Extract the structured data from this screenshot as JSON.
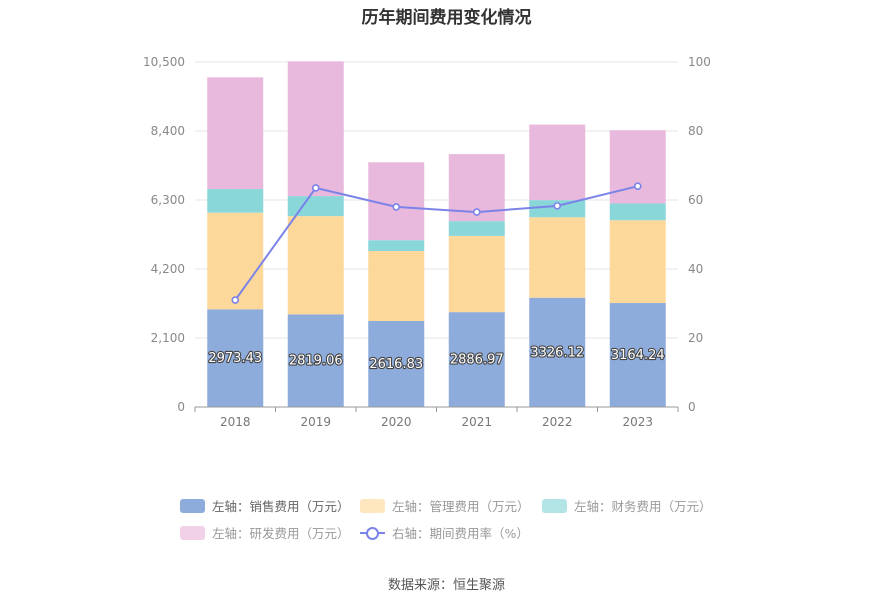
{
  "title": "历年期间费用变化情况",
  "source": "数据来源：恒生聚源",
  "colors": {
    "sales": "#8eacdb",
    "admin": "#fdd89b",
    "finance": "#8ad7da",
    "rnd": "#e8b9dc",
    "rate": "#7b83e8"
  },
  "legend": [
    {
      "label": "左轴：销售费用（万元）",
      "key": "sales",
      "kind": "box"
    },
    {
      "label": "左轴：管理费用（万元）",
      "key": "admin",
      "kind": "box"
    },
    {
      "label": "左轴：财务费用（万元）",
      "key": "finance",
      "kind": "box"
    },
    {
      "label": "左轴：研发费用（万元）",
      "key": "rnd",
      "kind": "box"
    },
    {
      "label": "右轴：期间费用率（%）",
      "key": "rate",
      "kind": "line"
    }
  ],
  "chart_data": {
    "type": "bar",
    "stacked": true,
    "categories": [
      "2018",
      "2019",
      "2020",
      "2021",
      "2022",
      "2023"
    ],
    "left_axis": {
      "ticks": [
        "0",
        "2,100",
        "4,200",
        "6,300",
        "8,400",
        "10,500"
      ],
      "ylim": [
        0,
        10500
      ]
    },
    "right_axis": {
      "ticks": [
        "0",
        "20",
        "40",
        "60",
        "80",
        "100"
      ],
      "ylim": [
        0,
        100
      ]
    },
    "series": [
      {
        "name": "左轴：销售费用（万元）",
        "key": "sales",
        "values": [
          2973.43,
          2819.06,
          2616.83,
          2886.97,
          3326.12,
          3164.24
        ],
        "labels": [
          "2973.43",
          "2819.06",
          "2616.83",
          "2886.97",
          "3326.12",
          "3164.24"
        ]
      },
      {
        "name": "左轴：管理费用（万元）",
        "key": "admin",
        "values": [
          2940,
          2990,
          2130,
          2320,
          2450,
          2520
        ]
      },
      {
        "name": "左轴：财务费用（万元）",
        "key": "finance",
        "values": [
          720,
          610,
          330,
          450,
          520,
          510
        ]
      },
      {
        "name": "左轴：研发费用（万元）",
        "key": "rnd",
        "values": [
          3400,
          4100,
          2370,
          2040,
          2300,
          2230
        ]
      },
      {
        "name": "右轴：期间费用率（%）",
        "key": "rate",
        "axis": "right",
        "type": "line",
        "values": [
          31.0,
          63.5,
          58.0,
          56.5,
          58.3,
          64.0
        ]
      }
    ],
    "grid": true,
    "legend_position": "bottom"
  }
}
